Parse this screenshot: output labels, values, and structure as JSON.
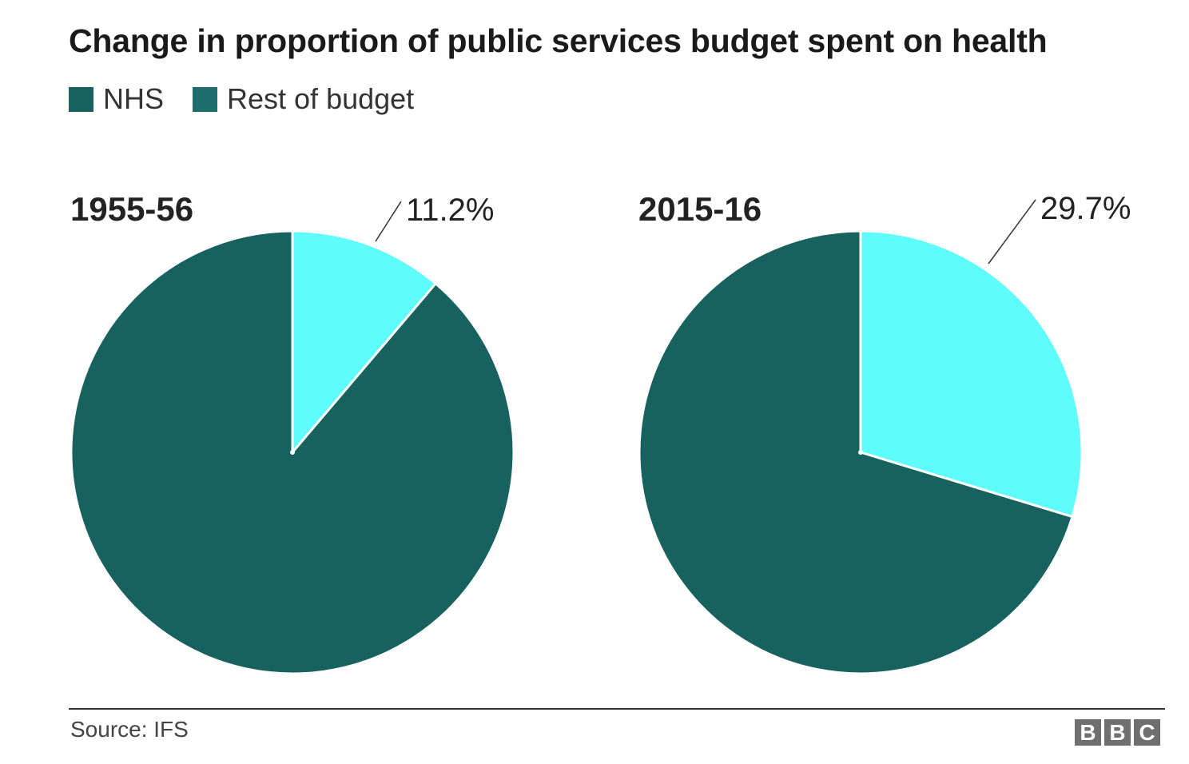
{
  "title": "Change in proportion of public services budget spent on health",
  "legend": [
    {
      "label": "NHS",
      "color": "#17625f"
    },
    {
      "label": "Rest of budget",
      "color": "#1d6e6c"
    }
  ],
  "colors": {
    "nhs_slice": "#5ffcfc",
    "rest_slice": "#17625f",
    "slice_border": "#ffffff",
    "leader_line": "#333333"
  },
  "chart_data": [
    {
      "type": "pie",
      "title": "1955-56",
      "slices": [
        {
          "label": "NHS",
          "value": 11.2,
          "data_label": "11.2%"
        },
        {
          "label": "Rest of budget",
          "value": 88.8
        }
      ]
    },
    {
      "type": "pie",
      "title": "2015-16",
      "slices": [
        {
          "label": "NHS",
          "value": 29.7,
          "data_label": "29.7%"
        },
        {
          "label": "Rest of budget",
          "value": 70.3
        }
      ]
    }
  ],
  "footer": {
    "source": "Source: IFS",
    "logo_letters": [
      "B",
      "B",
      "C"
    ]
  }
}
